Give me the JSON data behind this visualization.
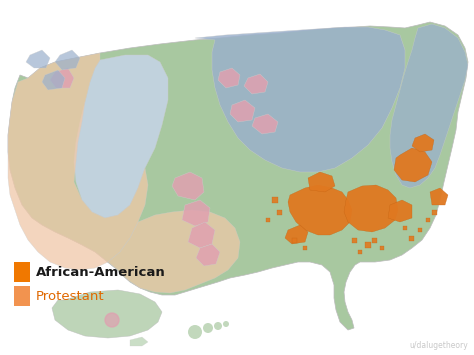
{
  "background_color": "#ffffff",
  "legend": [
    {
      "label": "African-American",
      "label_color": "#1a1a1a",
      "box_color": "#f07800",
      "fontsize": 9.5,
      "fontweight": "bold"
    },
    {
      "label": "Protestant",
      "label_color": "#e06800",
      "box_color": "#f08030",
      "fontsize": 9.5,
      "fontweight": "normal"
    }
  ],
  "watermark": "u/dalugetheory",
  "watermark_color": "#bbbbbb",
  "watermark_fontsize": 5.5,
  "colors": {
    "green": "#a8c8a0",
    "green2": "#b8d4b0",
    "blue": "#9ab0cc",
    "light_blue": "#c4d4e4",
    "pink": "#e0a0b0",
    "peach": "#f0c8a8",
    "orange": "#e07820",
    "white": "#ffffff",
    "border": "#d8d8d8"
  },
  "figure_width": 4.74,
  "figure_height": 3.55,
  "dpi": 100
}
